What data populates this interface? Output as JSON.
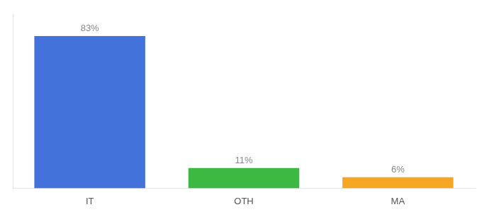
{
  "chart_data": {
    "type": "bar",
    "categories": [
      "IT",
      "OTH",
      "MA"
    ],
    "values": [
      83,
      11,
      6
    ],
    "value_labels": [
      "83%",
      "11%",
      "6%"
    ],
    "data_labels": true,
    "colors": [
      "#4472db",
      "#3cb843",
      "#f5a623"
    ],
    "ylim": [
      0,
      95
    ],
    "tick_labels": "x",
    "grid": false
  }
}
